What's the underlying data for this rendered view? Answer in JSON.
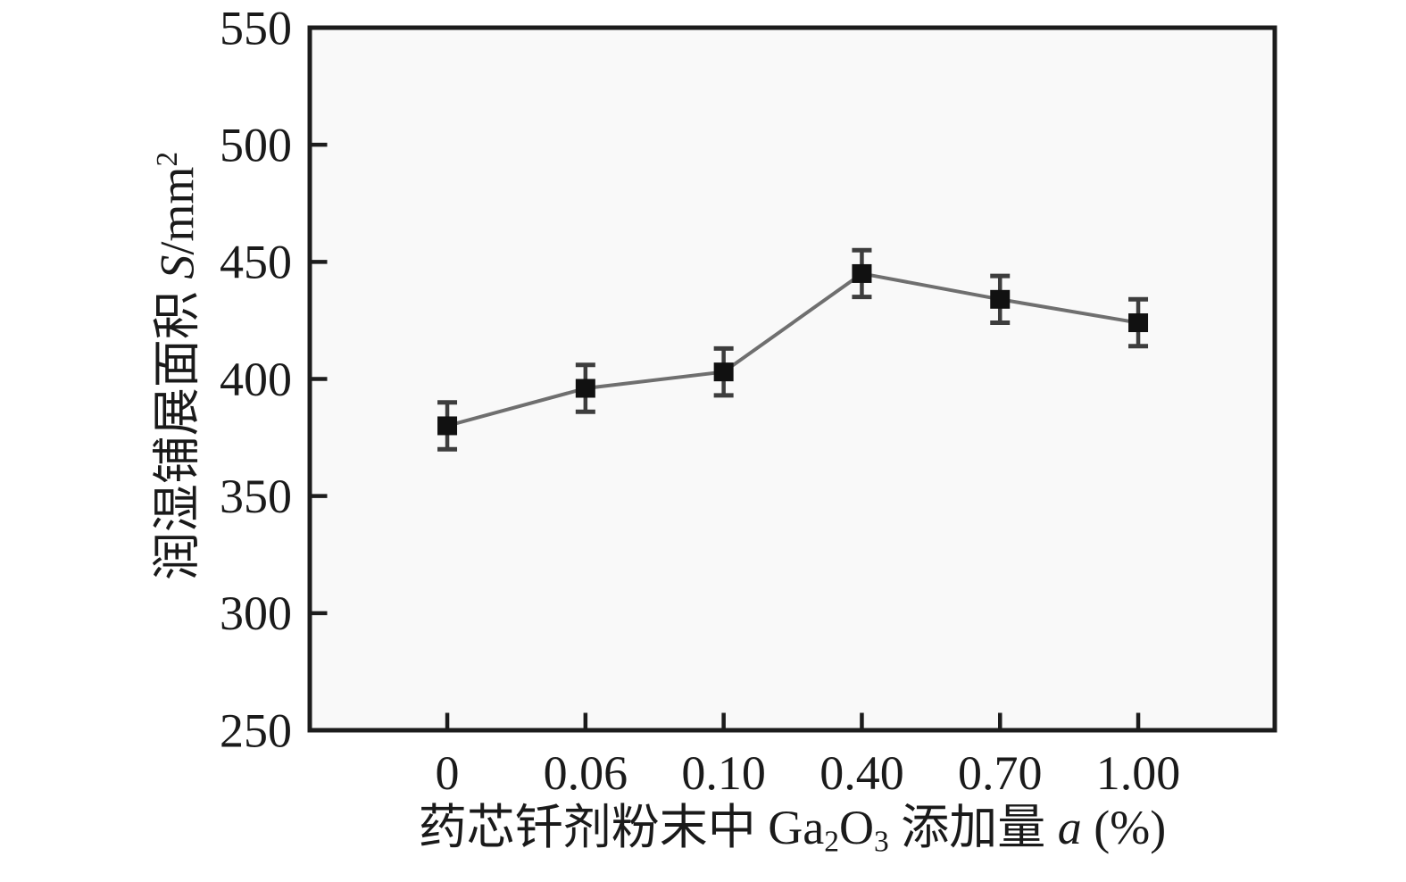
{
  "figure": {
    "ylabel_parts": {
      "cjk": "润湿铺展面积 ",
      "symbol": "S",
      "unit": "/mm",
      "sup": "2"
    },
    "xlabel_parts": {
      "p1": "药芯钎剂粉末中 Ga",
      "sub1": "2",
      "p2": "O",
      "sub2": "3",
      "p3": " 添加量 ",
      "var": "a",
      "p4": " (%)"
    }
  },
  "chart_data": {
    "type": "line",
    "title": "",
    "xlabel": "药芯钎剂粉末中 Ga2O3 添加量 a (%)",
    "ylabel": "润湿铺展面积 S/mm2",
    "x_categories": [
      "0",
      "0.06",
      "0.10",
      "0.40",
      "0.70",
      "1.00"
    ],
    "series": [
      {
        "name": "润湿铺展面积",
        "values": [
          380,
          396,
          403,
          445,
          434,
          424
        ],
        "error_bars": [
          10,
          10,
          10,
          10,
          10,
          10
        ]
      }
    ],
    "ylim": [
      250,
      550
    ],
    "yticks": [
      250,
      300,
      350,
      400,
      450,
      500,
      550
    ],
    "grid": false,
    "legend": "none",
    "marker": "square",
    "colors": {
      "marker": "#111111",
      "line": "#6f6f6f",
      "error_bar": "#3d3d3d",
      "frame": "#1c1c1c",
      "plot_bg": "#f9f9f9",
      "text": "#1a1a1a"
    }
  }
}
